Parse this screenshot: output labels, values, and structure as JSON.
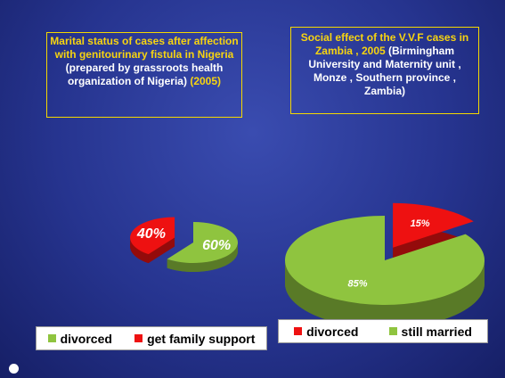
{
  "chart_data": [
    {
      "type": "pie",
      "title": "Marital status of cases after affection with genitourinary fistula in Nigeria",
      "subtitle": "(prepared by grassroots health organization of Nigeria)",
      "year": "(2005)",
      "categories": [
        "divorced",
        "get family support"
      ],
      "values": [
        60,
        40
      ],
      "value_labels": [
        "60%",
        "40%"
      ],
      "colors": [
        "#8fc43f",
        "#ee1111"
      ]
    },
    {
      "type": "pie",
      "title": "Social effect of the V.V.F cases in Zambia , 2005",
      "subtitle": "(Birmingham University and Maternity unit , Monze , Southern province , Zambia)",
      "categories": [
        "divorced",
        "still married"
      ],
      "values": [
        15,
        85
      ],
      "value_labels": [
        "15%",
        "85%"
      ],
      "colors": [
        "#ee1111",
        "#8fc43f"
      ]
    }
  ]
}
